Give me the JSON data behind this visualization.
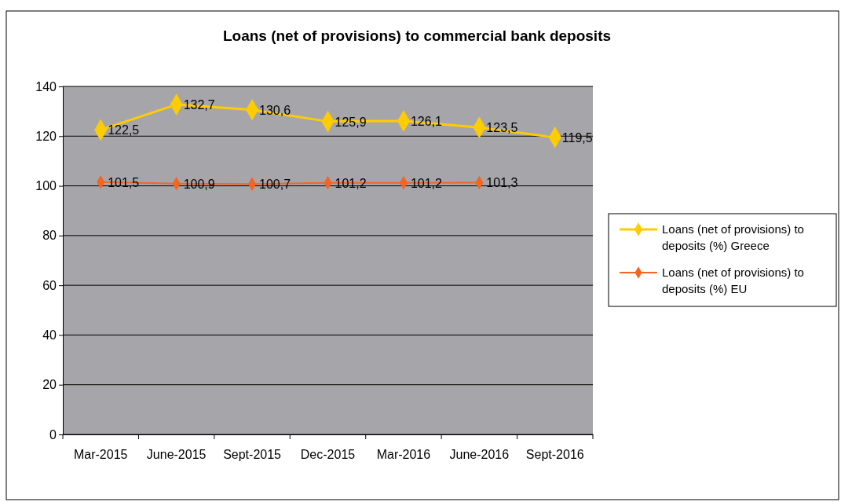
{
  "chart_data": {
    "type": "line",
    "title": "Loans (net of provisions) to commercial bank deposits",
    "categories": [
      "Mar-2015",
      "June-2015",
      "Sept-2015",
      "Dec-2015",
      "Mar-2016",
      "June-2016",
      "Sept-2016"
    ],
    "series": [
      {
        "name": "Loans (net of provisions) to deposits (%) Greece",
        "color": "#ffcc00",
        "values": [
          122.5,
          132.7,
          130.6,
          125.9,
          126.1,
          123.5,
          119.5
        ],
        "value_labels": [
          "122,5",
          "132,7",
          "130,6",
          "125,9",
          "126,1",
          "123,5",
          "119,5"
        ]
      },
      {
        "name": "Loans (net of provisions) to deposits (%) EU",
        "color": "#f26522",
        "values": [
          101.5,
          100.9,
          100.7,
          101.2,
          101.2,
          101.3,
          null
        ],
        "value_labels": [
          "101,5",
          "100,9",
          "100,7",
          "101,2",
          "101,2",
          "101,3",
          null
        ]
      }
    ],
    "ylim": [
      0,
      140
    ],
    "yticks": [
      0,
      20,
      40,
      60,
      80,
      100,
      120,
      140
    ],
    "grid": "y",
    "legend": "right",
    "marker": "diamond",
    "line_style": "solid"
  }
}
